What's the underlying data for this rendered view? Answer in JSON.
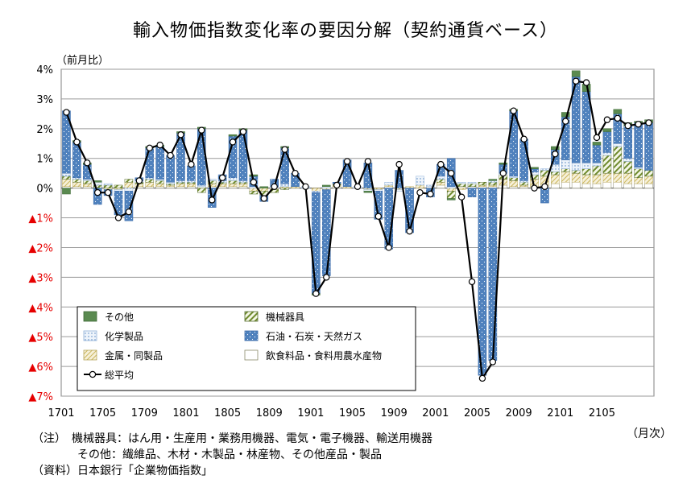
{
  "title": "輸入物価指数変化率の要因分解（契約通貨ベース）",
  "ylabel": "（前月比）",
  "xunit": "（月次）",
  "notes": [
    "（注）　機械器具：はん用・生産用・業務用機器、電気・電子機器、輸送用機器",
    "　　　　その他：繊維品、木材・木製品・林産物、その他産品・製品",
    "（資料）日本銀行「企業物価指数」"
  ],
  "colors": {
    "sonota": "#5a8a50",
    "kikai": "#c8d49a",
    "kagaku": "#dce8f6",
    "sekiyu": "#4f81bd",
    "kinzoku": "#e9e0b8",
    "inshoku": "#ffffff",
    "total": "#000000",
    "negative_tick": "#e60000"
  },
  "chart_data": {
    "type": "bar",
    "stacked": true,
    "title": "輸入物価指数変化率の要因分解（契約通貨ベース）",
    "ylabel": "（前月比）",
    "xlabel": "（月次）",
    "ylim": [
      -7,
      4
    ],
    "yticks": [
      {
        "value": 4,
        "label": "4%",
        "negative": false
      },
      {
        "value": 3,
        "label": "3%",
        "negative": false
      },
      {
        "value": 2,
        "label": "2%",
        "negative": false
      },
      {
        "value": 1,
        "label": "1%",
        "negative": false
      },
      {
        "value": 0,
        "label": "0%",
        "negative": false
      },
      {
        "value": -1,
        "label": "▲1%",
        "negative": true
      },
      {
        "value": -2,
        "label": "▲2%",
        "negative": true
      },
      {
        "value": -3,
        "label": "▲3%",
        "negative": true
      },
      {
        "value": -4,
        "label": "▲4%",
        "negative": true
      },
      {
        "value": -5,
        "label": "▲5%",
        "negative": true
      },
      {
        "value": -6,
        "label": "▲6%",
        "negative": true
      },
      {
        "value": -7,
        "label": "▲7%",
        "negative": true
      }
    ],
    "xticks": [
      {
        "index": 0,
        "label": "1701"
      },
      {
        "index": 4,
        "label": "1705"
      },
      {
        "index": 8,
        "label": "1709"
      },
      {
        "index": 12,
        "label": "1801"
      },
      {
        "index": 16,
        "label": "1805"
      },
      {
        "index": 20,
        "label": "1809"
      },
      {
        "index": 24,
        "label": "1901"
      },
      {
        "index": 28,
        "label": "1905"
      },
      {
        "index": 32,
        "label": "1909"
      },
      {
        "index": 36,
        "label": "2001"
      },
      {
        "index": 40,
        "label": "2005"
      },
      {
        "index": 44,
        "label": "2009"
      },
      {
        "index": 48,
        "label": "2101"
      },
      {
        "index": 52,
        "label": "2105"
      }
    ],
    "grid": true,
    "legend_position": "bottom-left",
    "categories": [
      "1701",
      "1702",
      "1703",
      "1704",
      "1705",
      "1706",
      "1707",
      "1708",
      "1709",
      "1710",
      "1711",
      "1712",
      "1801",
      "1802",
      "1803",
      "1804",
      "1805",
      "1806",
      "1807",
      "1808",
      "1809",
      "1810",
      "1811",
      "1812",
      "1901",
      "1902",
      "1903",
      "1904",
      "1905",
      "1906",
      "1907",
      "1908",
      "1909",
      "1910",
      "1911",
      "1912",
      "2001",
      "2002",
      "2003",
      "2004",
      "2005",
      "2006",
      "2007",
      "2008",
      "2009",
      "2010",
      "2011",
      "2012",
      "2101",
      "2102",
      "2103",
      "2104",
      "2105",
      "2106",
      "2107",
      "2108",
      "2109"
    ],
    "series": [
      {
        "key": "inshoku",
        "name": "飲食料品・食料用農水産物",
        "type": "bar",
        "values": [
          0.05,
          0.05,
          0.05,
          0.0,
          0.0,
          0.0,
          0.0,
          0.05,
          0.05,
          0.05,
          0.05,
          0.05,
          0.05,
          0.05,
          0.05,
          0.05,
          0.05,
          0.05,
          0.0,
          0.0,
          0.0,
          0.0,
          0.0,
          0.0,
          0.0,
          0.0,
          0.05,
          0.0,
          0.0,
          0.0,
          0.0,
          0.05,
          0.0,
          0.0,
          0.0,
          0.05,
          0.1,
          0.0,
          0.05,
          0.05,
          0.05,
          0.05,
          0.1,
          0.05,
          0.05,
          0.05,
          0.1,
          0.15,
          0.2,
          0.2,
          0.15,
          0.15,
          0.2,
          0.2,
          0.15,
          0.15,
          0.15
        ]
      },
      {
        "key": "kinzoku",
        "name": "金属・同製品",
        "type": "bar",
        "values": [
          0.25,
          0.15,
          0.1,
          0.0,
          -0.05,
          -0.05,
          0.2,
          0.1,
          0.15,
          0.1,
          0.05,
          0.1,
          0.1,
          0.0,
          0.1,
          0.1,
          0.1,
          0.1,
          -0.1,
          -0.1,
          -0.05,
          0.05,
          0.05,
          0.0,
          -0.1,
          -0.05,
          0.05,
          0.05,
          0.0,
          -0.05,
          -0.05,
          0.05,
          -0.05,
          0.05,
          0.1,
          0.0,
          0.1,
          -0.1,
          -0.05,
          0.0,
          0.05,
          0.05,
          0.2,
          0.2,
          0.05,
          0.25,
          0.3,
          0.3,
          0.35,
          0.3,
          0.3,
          0.3,
          0.3,
          0.3,
          0.35,
          0.2,
          0.25
        ]
      },
      {
        "key": "kikai",
        "name": "機械器具",
        "type": "bar",
        "values": [
          0.1,
          0.1,
          0.1,
          0.1,
          0.1,
          0.1,
          0.1,
          0.05,
          0.1,
          0.1,
          0.05,
          0.05,
          0.05,
          -0.15,
          0.1,
          0.05,
          0.1,
          0.05,
          -0.1,
          -0.15,
          -0.1,
          -0.05,
          0.0,
          0.0,
          0.0,
          0.0,
          0.05,
          0.0,
          0.0,
          0.0,
          0.0,
          0.0,
          0.0,
          0.0,
          0.0,
          0.0,
          0.1,
          -0.25,
          0.1,
          0.1,
          0.1,
          0.1,
          0.15,
          0.1,
          0.1,
          0.15,
          0.2,
          0.1,
          0.1,
          0.1,
          0.2,
          0.3,
          0.6,
          0.9,
          0.4,
          0.3,
          0.2
        ]
      },
      {
        "key": "kagaku",
        "name": "化学製品",
        "type": "bar",
        "values": [
          0.1,
          0.05,
          0.05,
          0.1,
          0.05,
          -0.05,
          -0.1,
          0.05,
          0.05,
          0.05,
          0.05,
          0.05,
          0.05,
          0.05,
          0.05,
          0.05,
          0.1,
          0.05,
          0.05,
          0.0,
          0.05,
          0.1,
          0.0,
          0.05,
          -0.05,
          0.05,
          0.0,
          0.0,
          0.05,
          -0.05,
          -0.05,
          0.1,
          -0.05,
          0.0,
          0.3,
          0.05,
          0.1,
          0.05,
          0.05,
          0.05,
          0.0,
          0.05,
          0.05,
          0.05,
          0.05,
          0.1,
          0.05,
          0.25,
          0.3,
          0.25,
          0.2,
          0.1,
          0.1,
          0.1,
          0.1,
          0.05,
          0.0
        ]
      },
      {
        "key": "sekiyu",
        "name": "石油・石炭・天然ガス",
        "type": "bar",
        "values": [
          2.1,
          1.2,
          0.5,
          -0.55,
          -0.2,
          -0.8,
          -1.0,
          0.1,
          1.0,
          1.1,
          0.9,
          1.6,
          0.5,
          1.9,
          -0.65,
          0.2,
          1.4,
          1.7,
          0.35,
          -0.2,
          0.25,
          1.2,
          0.45,
          0.0,
          -3.4,
          -2.9,
          0.05,
          0.9,
          0.0,
          0.85,
          -0.95,
          -2.05,
          0.6,
          -1.5,
          0.0,
          -0.3,
          0.4,
          0.95,
          0.0,
          -0.3,
          -6.3,
          -5.8,
          0.3,
          2.2,
          1.4,
          0.1,
          -0.5,
          0.5,
          1.45,
          2.9,
          2.4,
          0.6,
          0.7,
          1.0,
          1.1,
          1.5,
          1.6
        ]
      },
      {
        "key": "sonota",
        "name": "その他",
        "type": "bar",
        "values": [
          -0.2,
          0.05,
          0.05,
          0.05,
          0.0,
          0.0,
          0.0,
          0.0,
          0.05,
          0.05,
          0.0,
          0.05,
          0.0,
          0.05,
          0.0,
          0.0,
          0.05,
          0.05,
          0.05,
          0.05,
          0.0,
          0.05,
          0.0,
          0.0,
          -0.05,
          0.05,
          0.0,
          0.0,
          0.0,
          -0.05,
          0.0,
          0.0,
          0.0,
          0.0,
          0.0,
          0.0,
          0.0,
          -0.05,
          0.0,
          0.0,
          0.0,
          0.05,
          0.05,
          0.05,
          0.0,
          0.05,
          0.0,
          0.1,
          0.15,
          0.2,
          0.25,
          0.1,
          0.1,
          0.15,
          0.1,
          0.05,
          0.1
        ]
      },
      {
        "key": "total",
        "name": "総平均",
        "type": "line",
        "values": [
          2.55,
          1.55,
          0.85,
          -0.15,
          -0.15,
          -1.0,
          -0.8,
          0.25,
          1.35,
          1.45,
          1.1,
          1.8,
          0.8,
          1.95,
          -0.4,
          0.35,
          1.55,
          1.9,
          0.2,
          -0.35,
          0.05,
          1.3,
          0.5,
          0.05,
          -3.55,
          -3.0,
          0.1,
          0.9,
          0.05,
          0.9,
          -0.95,
          -2.0,
          0.8,
          -1.45,
          -0.15,
          -0.2,
          0.8,
          0.5,
          -0.3,
          -3.15,
          -6.4,
          -5.85,
          0.5,
          2.6,
          1.65,
          0.0,
          0.05,
          1.15,
          2.25,
          3.6,
          3.55,
          1.7,
          2.3,
          2.35,
          2.1,
          2.15,
          2.2
        ]
      }
    ]
  }
}
